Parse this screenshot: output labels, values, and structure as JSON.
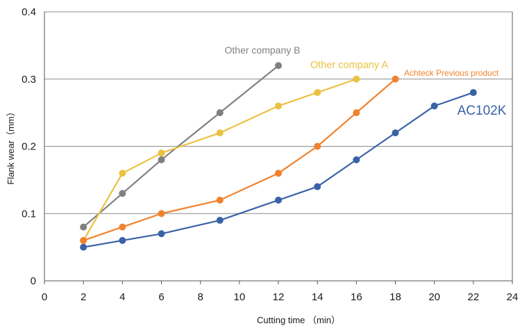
{
  "chart_data": {
    "type": "line",
    "xlabel": "Cutting time （min）",
    "ylabel": "Flank wear（mm）",
    "xlim": [
      0,
      24
    ],
    "ylim": [
      0,
      0.4
    ],
    "x_ticks": [
      "0",
      "2",
      "4",
      "6",
      "8",
      "10",
      "12",
      "14",
      "16",
      "18",
      "20",
      "22",
      "24"
    ],
    "y_ticks": [
      "0",
      "0.1",
      "0.2",
      "0.3",
      "0.4"
    ],
    "grid": "horizontal",
    "series": [
      {
        "name": "Other company B",
        "color": "#808080",
        "points": [
          [
            2,
            0.08
          ],
          [
            4,
            0.13
          ],
          [
            6,
            0.18
          ],
          [
            9,
            0.25
          ],
          [
            12,
            0.32
          ]
        ]
      },
      {
        "name": "Other company A",
        "color": "#EBC142",
        "points": [
          [
            2,
            0.06
          ],
          [
            4,
            0.16
          ],
          [
            6,
            0.19
          ],
          [
            9,
            0.22
          ],
          [
            12,
            0.26
          ],
          [
            14,
            0.28
          ],
          [
            16,
            0.3
          ]
        ]
      },
      {
        "name": "Achteck Previous product",
        "color": "#F0822E",
        "points": [
          [
            2,
            0.06
          ],
          [
            4,
            0.08
          ],
          [
            6,
            0.1
          ],
          [
            9,
            0.12
          ],
          [
            12,
            0.16
          ],
          [
            14,
            0.2
          ],
          [
            16,
            0.25
          ],
          [
            18,
            0.3
          ]
        ]
      },
      {
        "name": "AC102K",
        "color": "#3A62A6",
        "points": [
          [
            2,
            0.05
          ],
          [
            4,
            0.06
          ],
          [
            6,
            0.07
          ],
          [
            9,
            0.09
          ],
          [
            12,
            0.12
          ],
          [
            14,
            0.14
          ],
          [
            16,
            0.18
          ],
          [
            18,
            0.22
          ],
          [
            20,
            0.26
          ],
          [
            22,
            0.28
          ]
        ]
      }
    ]
  }
}
